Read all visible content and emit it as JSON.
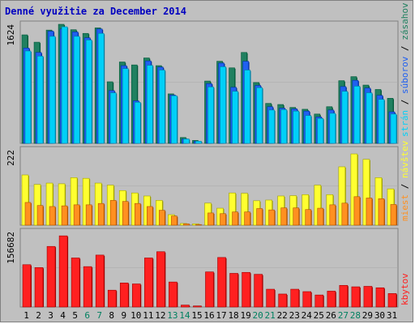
{
  "title": "Denné využitie za December 2014",
  "colors": {
    "background": "#c0c0c0",
    "panel": "#c0c0c0",
    "title": "#0000c0",
    "stran": "#00d0f8",
    "stran_dark": "#007ea0",
    "subor": "#2060f0",
    "subor_dark": "#0030a0",
    "zasah": "#208060",
    "zasah_dark": "#005838",
    "navsteva": "#ffff30",
    "navsteva_dark": "#a0a000",
    "miesta": "#ff9020",
    "miesta_dark": "#b05000",
    "kbytov": "#ff2020",
    "kbytov_dark": "#a00000",
    "weekend_label": "#008060",
    "weekday_label": "#000000"
  },
  "chart_data": [
    {
      "type": "bar",
      "panel": "top",
      "ymax_label": "1624",
      "ylim": [
        0,
        1624
      ],
      "categories": [
        "1",
        "2",
        "3",
        "4",
        "5",
        "6",
        "7",
        "8",
        "9",
        "10",
        "11",
        "12",
        "13",
        "14",
        "15",
        "16",
        "17",
        "18",
        "19",
        "20",
        "21",
        "22",
        "23",
        "24",
        "25",
        "26",
        "27",
        "28",
        "29",
        "30",
        "31"
      ],
      "weekend_days": [
        6,
        7,
        13,
        14,
        20,
        21,
        27,
        28
      ],
      "series": [
        {
          "name": "zásahov",
          "color_key": "zasah",
          "values": [
            1480,
            1380,
            1545,
            1624,
            1550,
            1500,
            1575,
            840,
            1110,
            1070,
            1165,
            1060,
            675,
            80,
            40,
            850,
            1120,
            1030,
            1240,
            830,
            545,
            530,
            490,
            465,
            400,
            500,
            855,
            910,
            795,
            735,
            615
          ]
        },
        {
          "name": "súborov",
          "color_key": "subor",
          "values": [
            1300,
            1240,
            1530,
            1560,
            1520,
            1440,
            1560,
            720,
            1060,
            580,
            1125,
            1040,
            660,
            60,
            30,
            815,
            1095,
            765,
            1120,
            790,
            500,
            480,
            470,
            440,
            360,
            455,
            775,
            860,
            755,
            655,
            430
          ]
        },
        {
          "name": "strán",
          "color_key": "stran",
          "values": [
            1260,
            1190,
            1460,
            1590,
            1460,
            1410,
            1500,
            690,
            1020,
            560,
            1065,
            1000,
            650,
            60,
            30,
            770,
            1045,
            710,
            1000,
            760,
            455,
            460,
            440,
            380,
            340,
            410,
            710,
            780,
            690,
            600,
            400
          ]
        }
      ],
      "legend": [
        "strán",
        "súborov",
        "zásahov"
      ]
    },
    {
      "type": "bar",
      "panel": "middle",
      "ymax_label": "222",
      "ylim": [
        0,
        222
      ],
      "series": [
        {
          "name": "návštev",
          "color_key": "navsteva",
          "values": [
            148,
            120,
            124,
            122,
            140,
            138,
            124,
            118,
            102,
            95,
            86,
            73,
            31,
            5,
            4,
            65,
            50,
            95,
            94,
            72,
            74,
            86,
            87,
            90,
            118,
            90,
            172,
            210,
            194,
            140,
            107
          ]
        },
        {
          "name": "miest",
          "color_key": "miesta",
          "values": [
            67,
            58,
            55,
            57,
            60,
            60,
            64,
            73,
            70,
            64,
            55,
            44,
            27,
            4,
            2,
            36,
            34,
            39,
            39,
            49,
            45,
            51,
            51,
            46,
            50,
            60,
            65,
            84,
            80,
            78,
            61
          ]
        }
      ],
      "legend": [
        "miest",
        "návštev"
      ]
    },
    {
      "type": "bar",
      "panel": "bottom",
      "ymax_label": "156682",
      "ylim": [
        0,
        156682
      ],
      "series": [
        {
          "name": "kbytov",
          "color_key": "kbytov",
          "values": [
            88000,
            82000,
            126000,
            148000,
            102000,
            84000,
            108000,
            35000,
            50000,
            48000,
            102000,
            115000,
            52000,
            4000,
            2200,
            73000,
            103000,
            70000,
            72000,
            68000,
            37000,
            27000,
            37000,
            32000,
            25000,
            33000,
            45000,
            42000,
            43000,
            40000,
            28000
          ]
        }
      ],
      "legend": [
        "kbytov"
      ]
    }
  ]
}
